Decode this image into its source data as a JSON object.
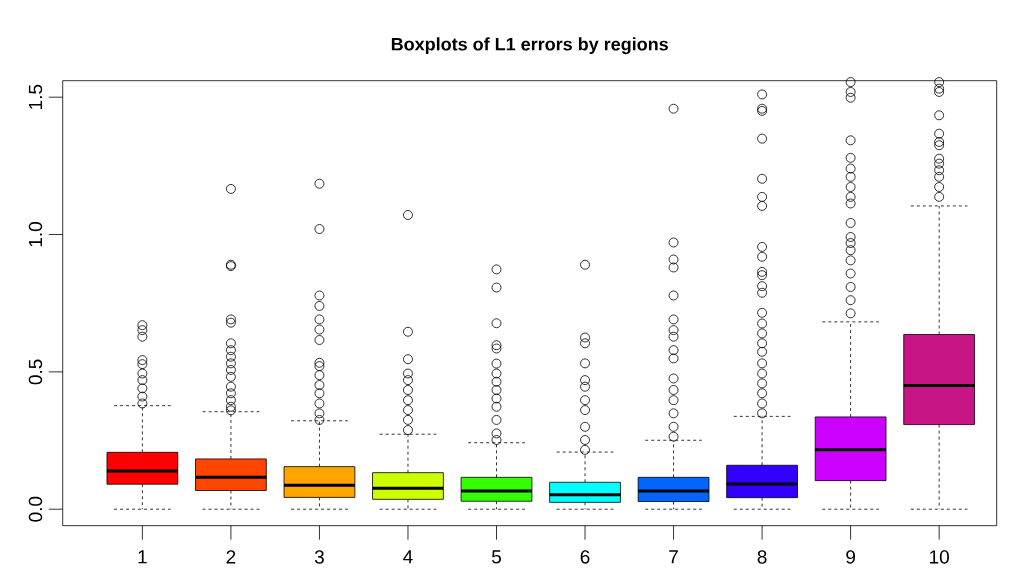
{
  "chart_data": {
    "type": "box",
    "title": "Boxplots of L1 errors by regions",
    "categories": [
      "1",
      "2",
      "3",
      "4",
      "5",
      "6",
      "7",
      "8",
      "9",
      "10"
    ],
    "colors": [
      "#ff0000",
      "#ff4500",
      "#ffa500",
      "#ccff00",
      "#33ff00",
      "#00ffff",
      "#0066ff",
      "#3300ff",
      "#cc00ff",
      "#c71585"
    ],
    "boxes": [
      {
        "low": 0,
        "q1": 0.091,
        "median": 0.139,
        "q3": 0.207,
        "high": 0.377,
        "outliers": [
          0.67,
          0.652,
          0.628,
          0.543,
          0.528,
          0.494,
          0.47,
          0.44,
          0.41,
          0.385
        ]
      },
      {
        "low": 0,
        "q1": 0.068,
        "median": 0.116,
        "q3": 0.183,
        "high": 0.355,
        "outliers": [
          1.166,
          0.89,
          0.885,
          0.691,
          0.679,
          0.604,
          0.579,
          0.555,
          0.531,
          0.507,
          0.482,
          0.446,
          0.422,
          0.397,
          0.373,
          0.36
        ]
      },
      {
        "low": 0,
        "q1": 0.043,
        "median": 0.087,
        "q3": 0.155,
        "high": 0.322,
        "outliers": [
          1.185,
          1.02,
          0.778,
          0.74,
          0.691,
          0.654,
          0.616,
          0.533,
          0.521,
          0.488,
          0.452,
          0.422,
          0.385,
          0.349,
          0.325
        ]
      },
      {
        "low": 0,
        "q1": 0.036,
        "median": 0.076,
        "q3": 0.133,
        "high": 0.273,
        "outliers": [
          1.071,
          0.646,
          0.546,
          0.494,
          0.47,
          0.434,
          0.397,
          0.361,
          0.325,
          0.288
        ]
      },
      {
        "low": 0,
        "q1": 0.029,
        "median": 0.066,
        "q3": 0.116,
        "high": 0.242,
        "outliers": [
          0.873,
          0.807,
          0.677,
          0.597,
          0.585,
          0.53,
          0.494,
          0.464,
          0.434,
          0.403,
          0.373,
          0.325,
          0.276,
          0.252
        ]
      },
      {
        "low": 0,
        "q1": 0.025,
        "median": 0.053,
        "q3": 0.098,
        "high": 0.208,
        "outliers": [
          0.89,
          0.625,
          0.604,
          0.531,
          0.47,
          0.446,
          0.397,
          0.361,
          0.3,
          0.252,
          0.216
        ]
      },
      {
        "low": 0,
        "q1": 0.028,
        "median": 0.066,
        "q3": 0.116,
        "high": 0.251,
        "outliers": [
          1.458,
          0.971,
          0.909,
          0.88,
          0.778,
          0.691,
          0.652,
          0.628,
          0.579,
          0.549,
          0.476,
          0.434,
          0.397,
          0.349,
          0.3,
          0.264
        ]
      },
      {
        "low": 0,
        "q1": 0.042,
        "median": 0.092,
        "q3": 0.16,
        "high": 0.338,
        "outliers": [
          1.51,
          1.458,
          1.45,
          1.349,
          1.203,
          1.137,
          1.104,
          0.955,
          0.919,
          0.864,
          0.852,
          0.812,
          0.788,
          0.715,
          0.676,
          0.64,
          0.604,
          0.573,
          0.531,
          0.494,
          0.458,
          0.422,
          0.385,
          0.349
        ]
      },
      {
        "low": 0,
        "q1": 0.104,
        "median": 0.216,
        "q3": 0.336,
        "high": 0.682,
        "outliers": [
          1.555,
          1.519,
          1.498,
          1.343,
          1.279,
          1.24,
          1.21,
          1.173,
          1.137,
          1.113,
          1.042,
          0.991,
          0.969,
          0.943,
          0.906,
          0.858,
          0.809,
          0.761,
          0.713
        ]
      },
      {
        "low": 0,
        "q1": 0.308,
        "median": 0.45,
        "q3": 0.636,
        "high": 1.104,
        "outliers": [
          1.555,
          1.531,
          1.519,
          1.434,
          1.367,
          1.337,
          1.325,
          1.276,
          1.258,
          1.234,
          1.21,
          1.173,
          1.137
        ]
      }
    ],
    "ylim": [
      -0.06,
      1.56
    ],
    "yticks": [
      {
        "value": 0,
        "label": "0.0"
      },
      0.5,
      {
        "value": 1,
        "label": "1.0"
      },
      1.5
    ],
    "grid": false
  }
}
